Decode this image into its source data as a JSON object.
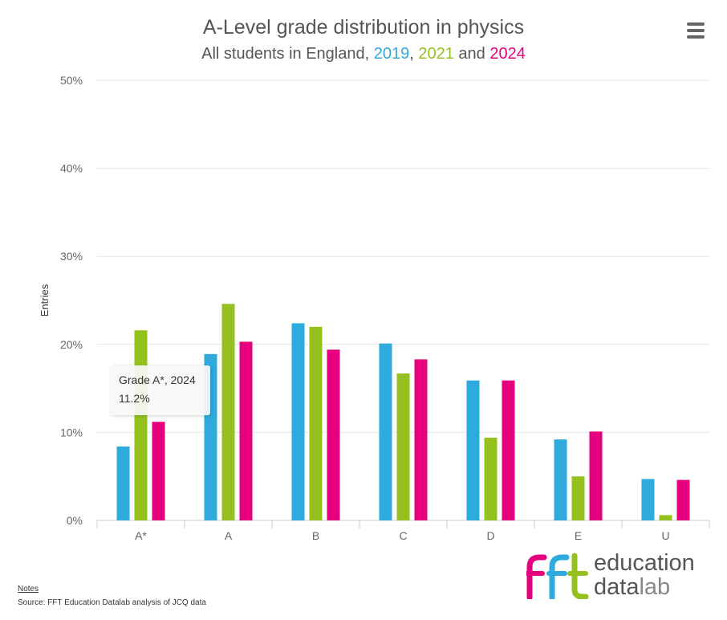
{
  "title": "A-Level grade distribution in physics",
  "subtitle": {
    "prefix": "All students in England, ",
    "y1": "2019",
    "sep1": ", ",
    "y2": "2021",
    "sep2": " and ",
    "y3": "2024"
  },
  "menu_icon": "hamburger-menu-icon",
  "tooltip": {
    "line1": "Grade A*, 2024",
    "line2": "11.2%"
  },
  "notes_label": "Notes",
  "source": "Source: FFT Education Datalab analysis of JCQ data",
  "logo": {
    "mark": "fft",
    "line1": "education",
    "line2_a": "data",
    "line2_b": "lab",
    "colors": [
      "#e5007e",
      "#2eaadc",
      "#95c11f"
    ]
  },
  "chart_data": {
    "type": "bar",
    "title": "A-Level grade distribution in physics",
    "subtitle": "All students in England, 2019, 2021 and 2024",
    "xlabel": "",
    "ylabel": "Entries",
    "ylim": [
      0,
      50
    ],
    "yticks": [
      0,
      10,
      20,
      30,
      40,
      50
    ],
    "ytick_suffix": "%",
    "grid": true,
    "legend": "none (years in subtitle)",
    "categories": [
      "A*",
      "A",
      "B",
      "C",
      "D",
      "E",
      "U"
    ],
    "series": [
      {
        "name": "2019",
        "color": "#2eaadc",
        "values": [
          8.4,
          18.9,
          22.4,
          20.1,
          15.9,
          9.2,
          4.7
        ]
      },
      {
        "name": "2021",
        "color": "#95c11f",
        "values": [
          21.6,
          24.6,
          22.0,
          16.7,
          9.4,
          5.0,
          0.6
        ]
      },
      {
        "name": "2024",
        "color": "#e5007e",
        "values": [
          11.2,
          20.3,
          19.4,
          18.3,
          15.9,
          10.1,
          4.6
        ]
      }
    ]
  }
}
